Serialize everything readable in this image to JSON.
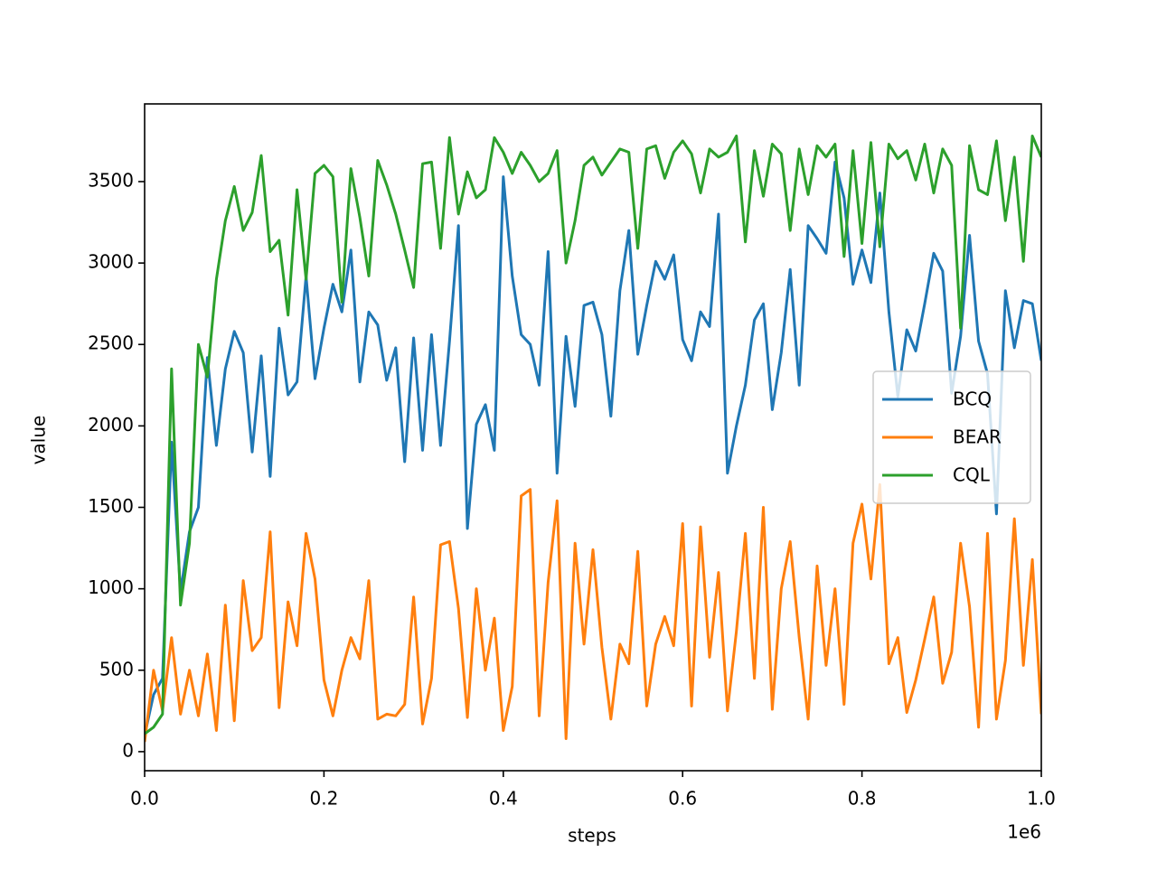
{
  "chart_data": {
    "type": "line",
    "xlabel": "steps",
    "ylabel": "value",
    "x_offset_text": "1e6",
    "x": [
      0,
      10000,
      20000,
      30000,
      40000,
      50000,
      60000,
      70000,
      80000,
      90000,
      100000,
      110000,
      120000,
      130000,
      140000,
      150000,
      160000,
      170000,
      180000,
      190000,
      200000,
      210000,
      220000,
      230000,
      240000,
      250000,
      260000,
      270000,
      280000,
      290000,
      300000,
      310000,
      320000,
      330000,
      340000,
      350000,
      360000,
      370000,
      380000,
      390000,
      400000,
      410000,
      420000,
      430000,
      440000,
      450000,
      460000,
      470000,
      480000,
      490000,
      500000,
      510000,
      520000,
      530000,
      540000,
      550000,
      560000,
      570000,
      580000,
      590000,
      600000,
      610000,
      620000,
      630000,
      640000,
      650000,
      660000,
      670000,
      680000,
      690000,
      700000,
      710000,
      720000,
      730000,
      740000,
      750000,
      760000,
      770000,
      780000,
      790000,
      800000,
      810000,
      820000,
      830000,
      840000,
      850000,
      860000,
      870000,
      880000,
      890000,
      900000,
      910000,
      920000,
      930000,
      940000,
      950000,
      960000,
      970000,
      980000,
      990000,
      1000000
    ],
    "series": [
      {
        "name": "BCQ",
        "color": "#1f77b4",
        "values": [
          100,
          350,
          450,
          1900,
          980,
          1350,
          1500,
          2420,
          1880,
          2350,
          2580,
          2450,
          1840,
          2430,
          1690,
          2600,
          2190,
          2270,
          2920,
          2290,
          2600,
          2870,
          2700,
          3080,
          2270,
          2700,
          2620,
          2280,
          2480,
          1780,
          2540,
          1850,
          2560,
          1880,
          2520,
          3230,
          1370,
          2010,
          2130,
          1850,
          3530,
          2920,
          2560,
          2500,
          2250,
          3070,
          1710,
          2550,
          2120,
          2740,
          2760,
          2560,
          2060,
          2830,
          3200,
          2440,
          2740,
          3010,
          2900,
          3050,
          2530,
          2400,
          2700,
          2610,
          3300,
          1710,
          2000,
          2250,
          2650,
          2750,
          2100,
          2450,
          2960,
          2250,
          3230,
          3150,
          3060,
          3620,
          3400,
          2870,
          3080,
          2880,
          3430,
          2700,
          2180,
          2590,
          2460,
          2750,
          3060,
          2950,
          2200,
          2550,
          3170,
          2520,
          2320,
          1460,
          2830,
          2480,
          2770,
          2750,
          2400
        ]
      },
      {
        "name": "BEAR",
        "color": "#ff7f0e",
        "values": [
          60,
          500,
          250,
          700,
          230,
          500,
          220,
          600,
          130,
          900,
          190,
          1050,
          620,
          700,
          1350,
          270,
          920,
          650,
          1340,
          1060,
          440,
          220,
          500,
          700,
          570,
          1050,
          200,
          230,
          220,
          290,
          950,
          170,
          450,
          1270,
          1290,
          880,
          210,
          1000,
          500,
          820,
          130,
          400,
          1570,
          1610,
          220,
          1040,
          1540,
          80,
          1280,
          660,
          1240,
          640,
          200,
          660,
          540,
          1230,
          280,
          660,
          830,
          650,
          1400,
          280,
          1380,
          580,
          1100,
          250,
          740,
          1340,
          450,
          1500,
          260,
          1000,
          1290,
          700,
          200,
          1140,
          530,
          1000,
          290,
          1280,
          1520,
          1060,
          1640,
          540,
          700,
          240,
          440,
          690,
          950,
          420,
          610,
          1280,
          890,
          150,
          1340,
          200,
          560,
          1430,
          530,
          1180,
          230
        ]
      },
      {
        "name": "CQL",
        "color": "#2ca02c",
        "values": [
          110,
          150,
          230,
          2350,
          900,
          1280,
          2500,
          2300,
          2900,
          3260,
          3470,
          3200,
          3310,
          3660,
          3070,
          3140,
          2680,
          3450,
          2900,
          3550,
          3600,
          3530,
          2760,
          3580,
          3280,
          2920,
          3630,
          3480,
          3300,
          3080,
          2850,
          3610,
          3620,
          3090,
          3770,
          3300,
          3560,
          3400,
          3450,
          3770,
          3680,
          3550,
          3680,
          3600,
          3500,
          3550,
          3690,
          3000,
          3260,
          3600,
          3650,
          3540,
          3620,
          3700,
          3680,
          3090,
          3700,
          3720,
          3520,
          3680,
          3750,
          3670,
          3430,
          3700,
          3650,
          3680,
          3780,
          3130,
          3690,
          3410,
          3730,
          3670,
          3200,
          3700,
          3420,
          3720,
          3650,
          3730,
          3040,
          3690,
          3120,
          3740,
          3100,
          3730,
          3640,
          3690,
          3510,
          3730,
          3430,
          3700,
          3600,
          2600,
          3720,
          3450,
          3420,
          3750,
          3260,
          3650,
          3010,
          3780,
          3650
        ]
      }
    ],
    "xlim": [
      0,
      1000000
    ],
    "ylim": [
      -117,
      3977
    ],
    "xticks": [
      {
        "value": 0,
        "label": "0.0"
      },
      {
        "value": 200000,
        "label": "0.2"
      },
      {
        "value": 400000,
        "label": "0.4"
      },
      {
        "value": 600000,
        "label": "0.6"
      },
      {
        "value": 800000,
        "label": "0.8"
      },
      {
        "value": 1000000,
        "label": "1.0"
      }
    ],
    "yticks": [
      0,
      500,
      1000,
      1500,
      2000,
      2500,
      3000,
      3500
    ],
    "grid": false,
    "legend": "center right"
  }
}
